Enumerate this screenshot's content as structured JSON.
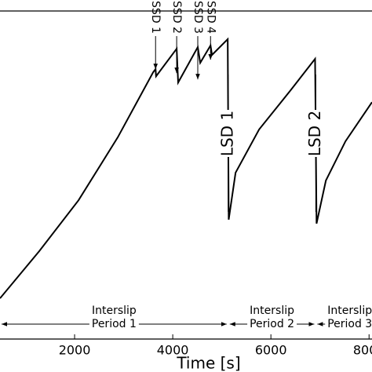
{
  "chart_data": {
    "type": "line",
    "xlabel": "Time [s]",
    "x": [
      480,
      1280,
      2080,
      2880,
      3600,
      3650,
      3660,
      4080,
      4110,
      4510,
      4560,
      4770,
      4800,
      5120,
      5140,
      5280,
      5760,
      6400,
      6900,
      6930,
      7120,
      7520,
      8060
    ],
    "series": [
      {
        "name": "slip",
        "color": "#000000",
        "values": [
          12.4,
          26.8,
          42.3,
          61.5,
          81.3,
          82.3,
          80.1,
          88.5,
          78.2,
          89,
          84.2,
          89.5,
          86.6,
          91.4,
          36.4,
          50.7,
          63.9,
          75.8,
          85.4,
          35.2,
          48.3,
          60.3,
          72.2
        ]
      }
    ],
    "xlim": [
      480,
      8060
    ],
    "xticks": [
      2000,
      4000,
      6000,
      8000
    ],
    "ylim": [
      0,
      100
    ],
    "ssd": [
      {
        "text": "SSD 1",
        "x": 3650
      },
      {
        "text": "SSD 2",
        "x": 4080
      },
      {
        "text": "SSD 3",
        "x": 4510
      },
      {
        "text": "SSD 4",
        "x": 4770
      }
    ],
    "lsd": [
      {
        "text": "LSD 1",
        "x": 5130
      },
      {
        "text": "LSD 2",
        "x": 6915
      }
    ],
    "periods": [
      {
        "line1": "Interslip",
        "line2": "Period 1",
        "start": 480,
        "end": 5130
      },
      {
        "line1": "Interslip",
        "line2": "Period 2",
        "start": 5130,
        "end": 6915
      },
      {
        "line1": "Interslip",
        "line2": "Period 3",
        "start": 6915,
        "end": 8300
      }
    ]
  }
}
